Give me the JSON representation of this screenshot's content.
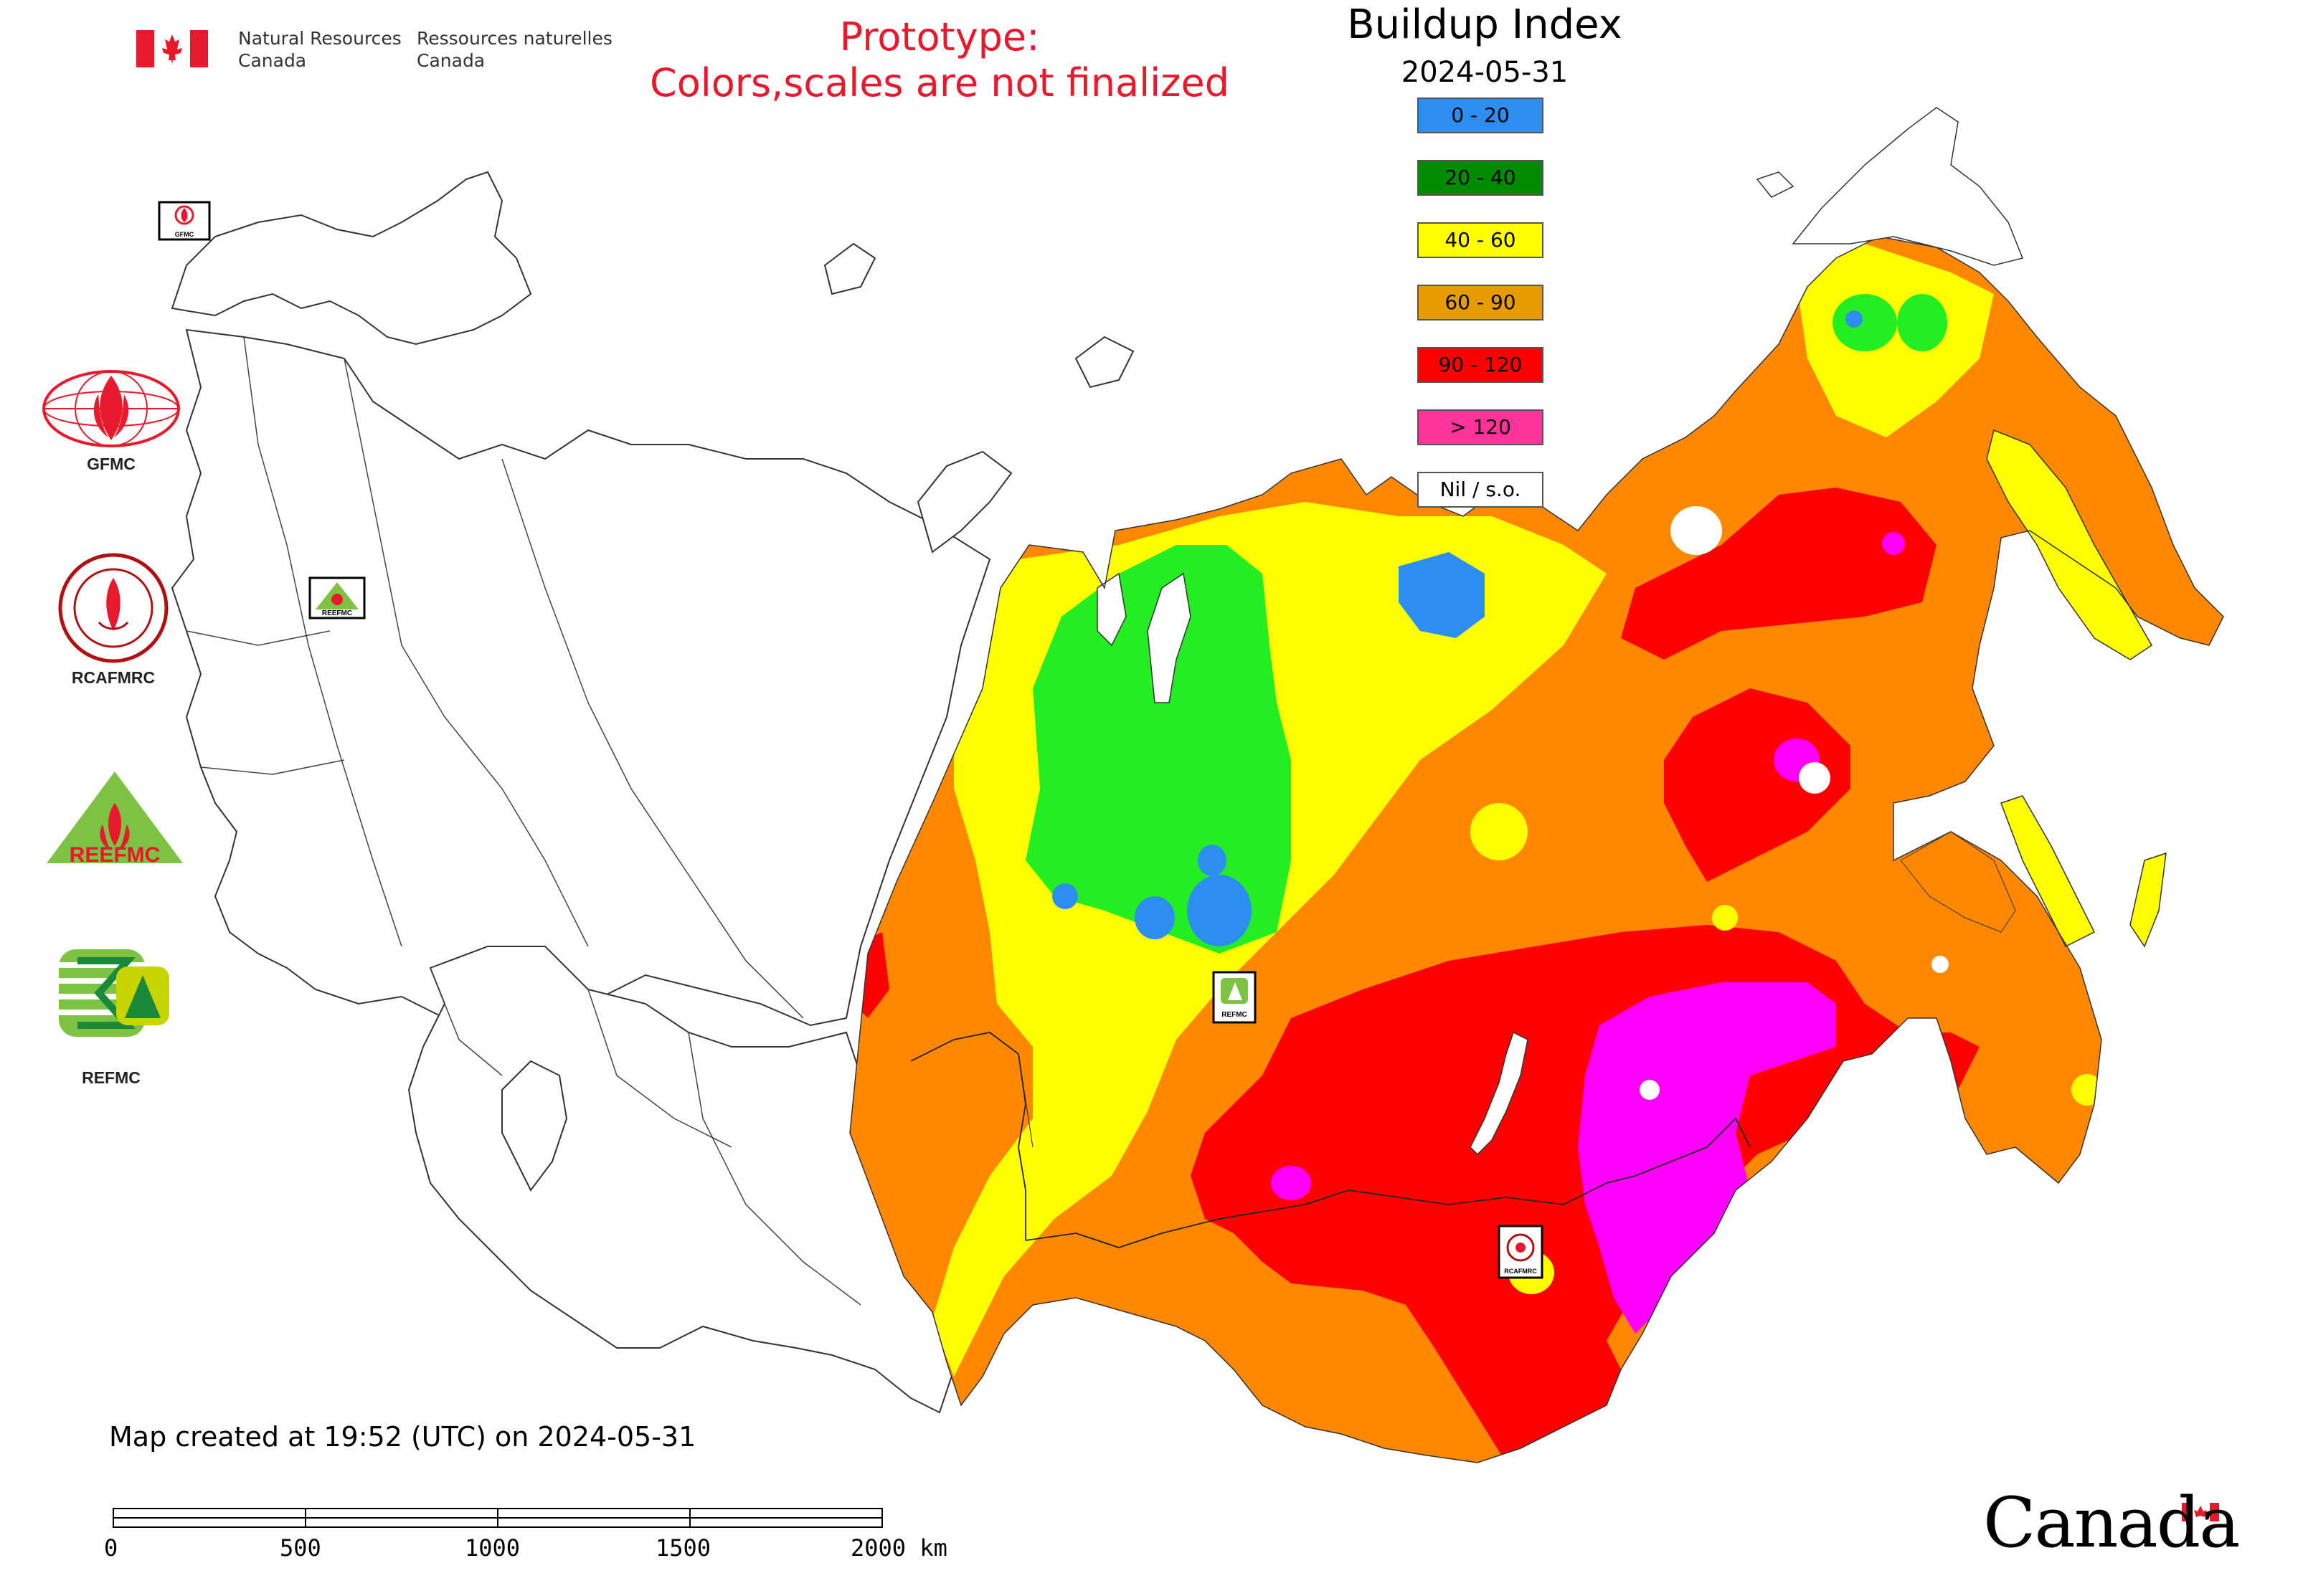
{
  "header": {
    "org_en_line1": "Natural Resources",
    "org_en_line2": "Canada",
    "org_fr_line1": "Ressources naturelles",
    "org_fr_line2": "Canada",
    "prototype_line1": "Prototype:",
    "prototype_line2": "Colors,scales are not finalized",
    "title": "Buildup Index",
    "date": "2024-05-31"
  },
  "legend": {
    "items": [
      {
        "label": "0 - 20",
        "color": "#2b8ef0"
      },
      {
        "label": "20 - 40",
        "color": "#008a00"
      },
      {
        "label": "40 - 60",
        "color": "#ffff00"
      },
      {
        "label": "60 - 90",
        "color": "#e69b00"
      },
      {
        "label": "90 - 120",
        "color": "#ff0000"
      },
      {
        "label": "> 120",
        "color": "#ff3399"
      },
      {
        "label": "Nil / s.o.",
        "color": "#ffffff"
      }
    ]
  },
  "map_colors": {
    "very_low": "#2b8ef0",
    "low": "#22ee22",
    "moderate": "#ffff00",
    "high": "#ff8800",
    "very_high": "#ff0000",
    "extreme": "#ff00ff",
    "outline": "#333333"
  },
  "logos": {
    "gfmc": "GFMC",
    "rcafmrc": "RCAFMRC",
    "reefmc": "REEFMC",
    "refmc": "REFMC"
  },
  "map_markers": {
    "gfmc": "GFMC",
    "reefmc": "REEFMC",
    "refmc": "REFMC",
    "rcafmrc": "RCAFMRC"
  },
  "footer": {
    "created": "Map created at 19:52 (UTC) on 2024-05-31",
    "scale_ticks": [
      "0",
      "500",
      "1000",
      "1500",
      "2000 km"
    ],
    "canada_wordmark": "Canada"
  }
}
